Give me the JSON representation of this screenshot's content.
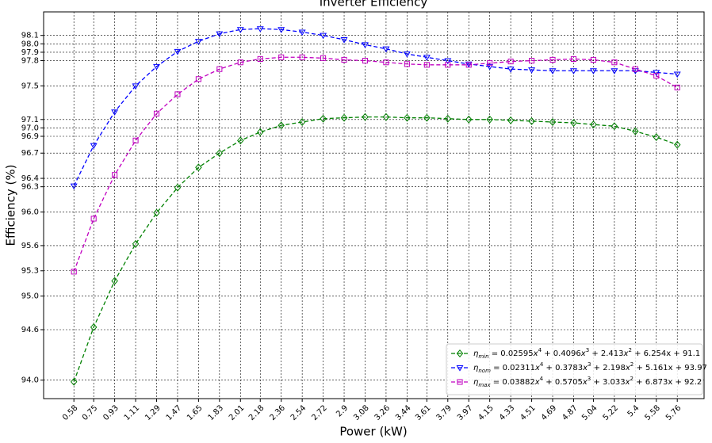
{
  "chart_data": {
    "type": "line",
    "title": "Inverter Efficiency",
    "x_label": "Power (kW)",
    "y_label": "Efficiency (%)",
    "x": [
      0.58,
      0.75,
      0.93,
      1.11,
      1.29,
      1.47,
      1.65,
      1.83,
      2.01,
      2.18,
      2.36,
      2.54,
      2.72,
      2.9,
      3.08,
      3.26,
      3.44,
      3.61,
      3.79,
      3.97,
      4.15,
      4.33,
      4.51,
      4.69,
      4.87,
      5.04,
      5.22,
      5.4,
      5.58,
      5.76
    ],
    "xticks": [
      0.58,
      0.75,
      0.93,
      1.11,
      1.29,
      1.47,
      1.65,
      1.83,
      2.01,
      2.18,
      2.36,
      2.54,
      2.72,
      2.9,
      3.08,
      3.26,
      3.44,
      3.61,
      3.79,
      3.97,
      4.15,
      4.33,
      4.51,
      4.69,
      4.87,
      5.04,
      5.22,
      5.4,
      5.58,
      5.76
    ],
    "xlim": [
      0.32,
      5.99
    ],
    "ylim": [
      93.78,
      98.38
    ],
    "yticks": [
      {
        "value": 94.0,
        "label": "94.0"
      },
      94.6,
      {
        "value": 95.0,
        "label": "95.0"
      },
      95.3,
      95.6,
      {
        "value": 96.0,
        "label": "96.0"
      },
      96.3,
      96.4,
      96.7,
      96.9,
      {
        "value": 97.0,
        "label": "97.0"
      },
      97.1,
      97.5,
      97.8,
      97.9,
      {
        "value": 98.0,
        "label": "98.0"
      },
      98.1
    ],
    "grid": true,
    "legend": "lower right",
    "series": [
      {
        "name": "ηmin = 0.02595x4 + 0.4096x3 + 2.413x2 + 6.254x + 91.1",
        "color": "#008000",
        "marker": "diamond",
        "values": [
          93.98,
          94.63,
          95.18,
          95.62,
          95.99,
          96.29,
          96.53,
          96.7,
          96.85,
          96.95,
          97.03,
          97.07,
          97.11,
          97.12,
          97.13,
          97.13,
          97.12,
          97.12,
          97.11,
          97.1,
          97.1,
          97.09,
          97.08,
          97.07,
          97.06,
          97.04,
          97.02,
          96.96,
          96.89,
          96.8
        ]
      },
      {
        "name": "ηnom = 0.02311x4 + 0.3783x3 + 2.198x2 + 5.161x + 93.97",
        "color": "#0000ff",
        "marker": "triangle-down",
        "values": [
          96.31,
          96.79,
          97.19,
          97.5,
          97.73,
          97.91,
          98.03,
          98.12,
          98.17,
          98.18,
          98.17,
          98.14,
          98.1,
          98.05,
          97.99,
          97.94,
          97.88,
          97.84,
          97.8,
          97.76,
          97.73,
          97.7,
          97.69,
          97.68,
          97.68,
          97.68,
          97.68,
          97.68,
          97.66,
          97.64
        ]
      },
      {
        "name": "ηmax = 0.03882x4 + 0.5705x3 + 3.033x2 + 6.873x + 92.2",
        "color": "#c000c0",
        "marker": "square",
        "values": [
          95.29,
          95.92,
          96.44,
          96.85,
          97.17,
          97.4,
          97.58,
          97.7,
          97.78,
          97.82,
          97.84,
          97.84,
          97.83,
          97.81,
          97.8,
          97.78,
          97.76,
          97.75,
          97.75,
          97.75,
          97.77,
          97.79,
          97.8,
          97.81,
          97.82,
          97.81,
          97.78,
          97.7,
          97.62,
          97.48
        ]
      }
    ]
  }
}
